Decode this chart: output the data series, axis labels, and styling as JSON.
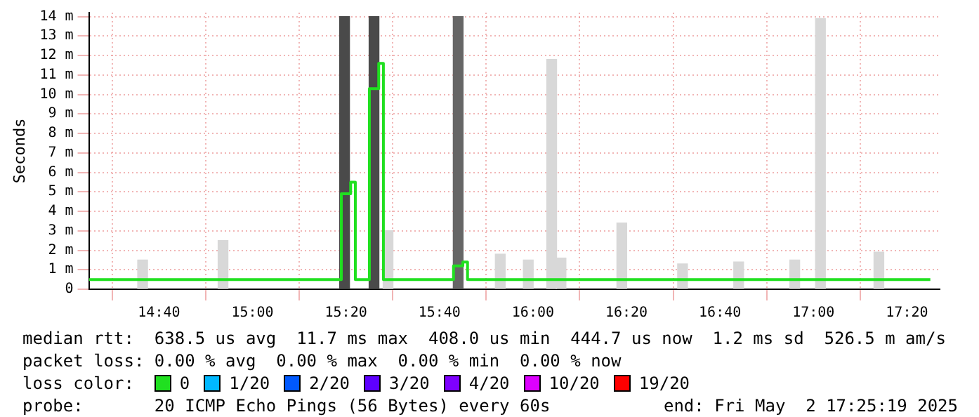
{
  "chart_data": {
    "type": "bar",
    "ylabel": "Seconds",
    "xlim": [
      14.4167,
      17.45
    ],
    "ylim": [
      0,
      14.2
    ],
    "xticks": [
      {
        "value": 14.6667,
        "label": "14:40"
      },
      {
        "value": 15,
        "label": "15:00"
      },
      {
        "value": 15.3333,
        "label": "15:20"
      },
      {
        "value": 15.6667,
        "label": "15:40"
      },
      {
        "value": 16,
        "label": "16:00"
      },
      {
        "value": 16.3333,
        "label": "16:20"
      },
      {
        "value": 16.6667,
        "label": "16:40"
      },
      {
        "value": 17,
        "label": "17:00"
      },
      {
        "value": 17.3333,
        "label": "17:20"
      }
    ],
    "yticks": [
      0,
      {
        "value": 1,
        "label": "1 m"
      },
      {
        "value": 2,
        "label": "2 m"
      },
      {
        "value": 3,
        "label": "3 m"
      },
      {
        "value": 4,
        "label": "4 m"
      },
      {
        "value": 5,
        "label": "5 m"
      },
      {
        "value": 6,
        "label": "6 m"
      },
      {
        "value": 7,
        "label": "7 m"
      },
      {
        "value": 8,
        "label": "8 m"
      },
      {
        "value": 9,
        "label": "9 m"
      },
      {
        "value": 10,
        "label": "10 m"
      },
      {
        "value": 11,
        "label": "11 m"
      },
      {
        "value": 12,
        "label": "12 m"
      },
      {
        "value": 13,
        "label": "13 m"
      },
      {
        "value": 14,
        "label": "14 m"
      }
    ],
    "grid": true,
    "legend": "bottom",
    "legend_title": "loss color:",
    "series": [
      {
        "x": [
          14.6083,
          14.895,
          15.3283,
          15.4333,
          15.4833,
          15.7333,
          15.8833,
          15.9833,
          16.0667,
          16.1,
          16.3167,
          16.5333,
          16.7333,
          16.9333,
          17.025,
          17.2333
        ],
        "values": [
          1.5,
          2.5,
          14,
          14,
          3.0,
          14,
          1.8,
          1.5,
          11.8,
          1.6,
          3.4,
          1.3,
          1.4,
          1.5,
          13.9,
          1.9
        ],
        "colors": [
          "#d8d8d8",
          "#d8d8d8",
          "#4a4a4a",
          "#4a4a4a",
          "#d8d8d8",
          "#666666",
          "#d8d8d8",
          "#d8d8d8",
          "#d8d8d8",
          "#d8d8d8",
          "#d8d8d8",
          "#d8d8d8",
          "#d8d8d8",
          "#d8d8d8",
          "#d8d8d8",
          "#d8d8d8"
        ]
      },
      {
        "type": "step",
        "name": "0",
        "color": "#20e020",
        "x": [
          14.4167,
          14.6667,
          15,
          15.3,
          15.3167,
          15.35,
          15.3667,
          15.4167,
          15.45,
          15.4667,
          15.7167,
          15.75,
          15.7667,
          16,
          16.3333,
          16.6667,
          17,
          17.3333,
          17.4167
        ],
        "values": [
          0.5,
          0.5,
          0.5,
          0.5,
          4.9,
          5.5,
          0.5,
          10.3,
          11.6,
          0.5,
          1.2,
          1.4,
          0.5,
          0.5,
          0.5,
          0.5,
          0.5,
          0.5,
          0.5
        ]
      },
      {
        "name": "1/20",
        "color": "#00b8ff"
      },
      {
        "name": "2/20",
        "color": "#0059ff"
      },
      {
        "name": "3/20",
        "color": "#5e00ff"
      },
      {
        "name": "4/20",
        "color": "#7e00ff"
      },
      {
        "name": "10/20",
        "color": "#dd00ff"
      },
      {
        "name": "19/20",
        "color": "#ff0000"
      }
    ],
    "annotations": [
      "median rtt:  638.5 us avg  11.7 ms max  408.0 us min  444.7 us now  1.2 ms sd  526.5 m am/s",
      "packet loss: 0.00 % avg  0.00 % max  0.00 % min  0.00 % now",
      "probe:       20 ICMP Echo Pings (56 Bytes) every 60s",
      "end: Fri May  2 17:25:19 2025"
    ]
  }
}
